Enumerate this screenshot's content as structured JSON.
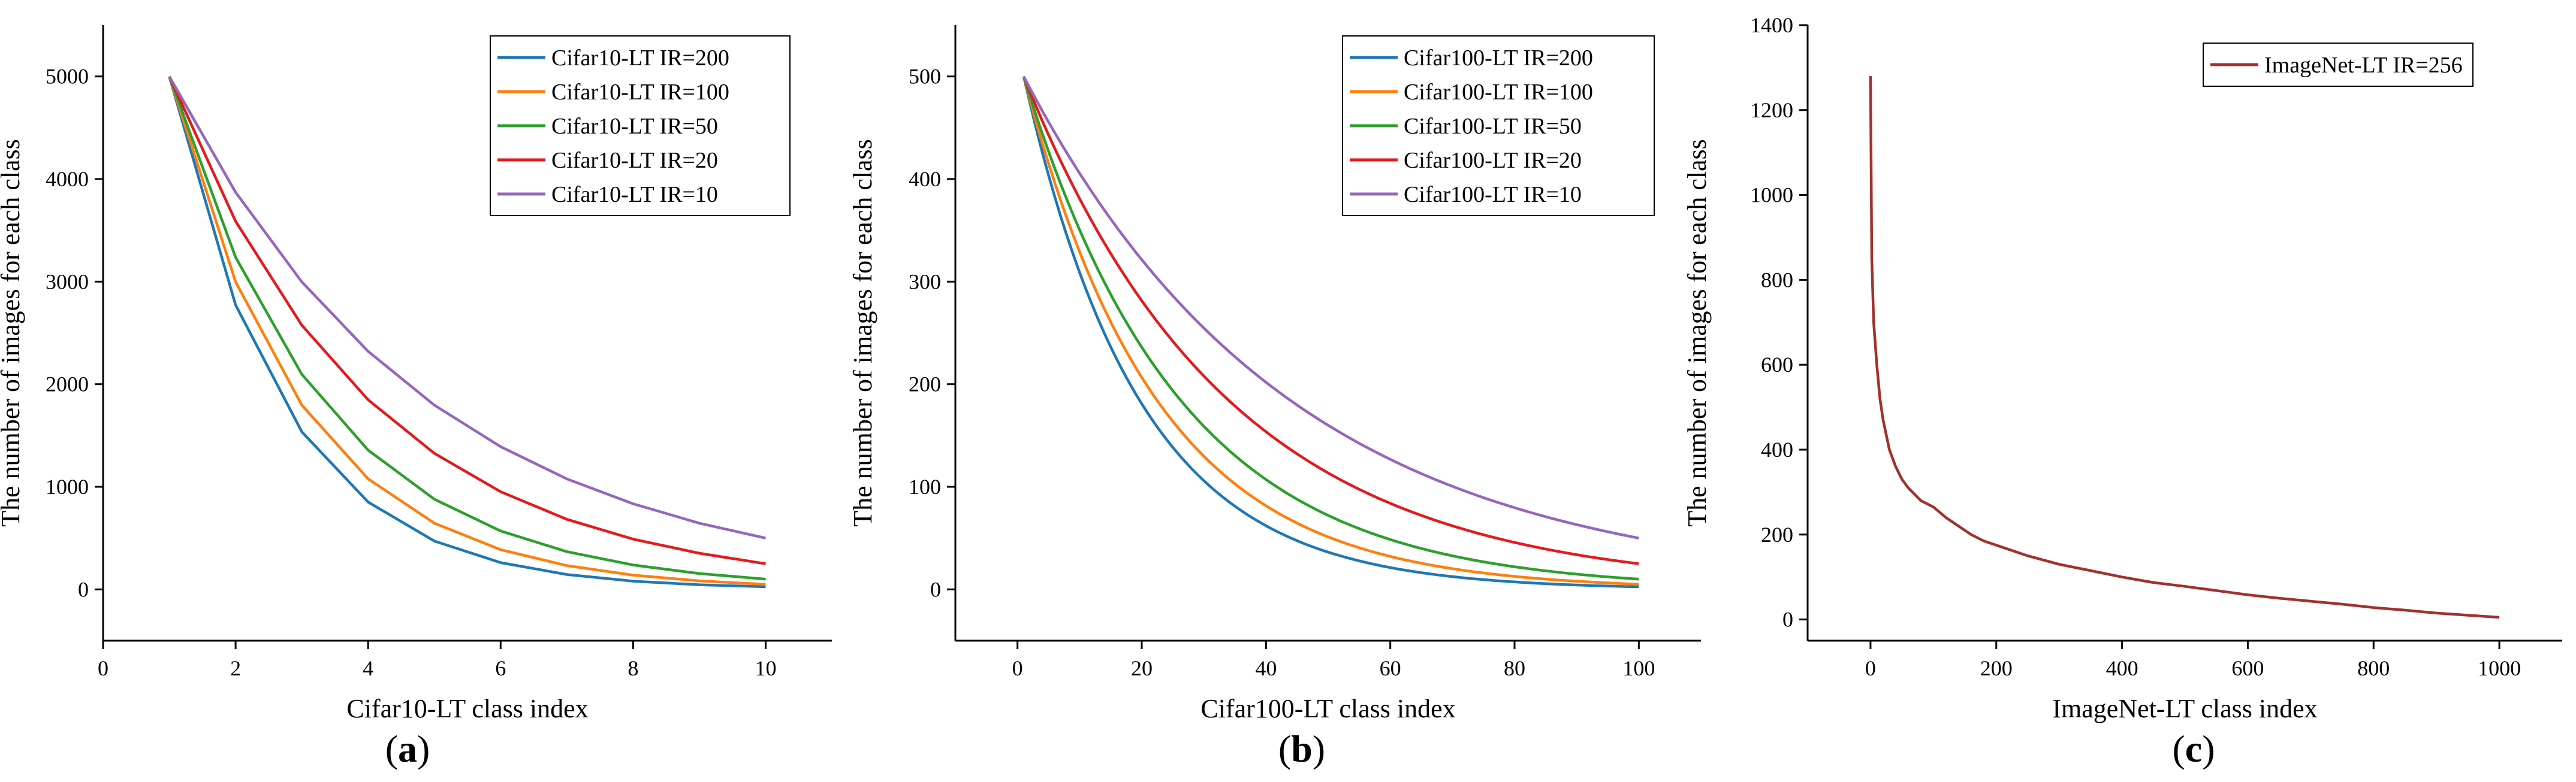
{
  "figure": {
    "panels": [
      {
        "open": "(",
        "letter": "a",
        "close": ")"
      },
      {
        "open": "(",
        "letter": "b",
        "close": ")"
      },
      {
        "open": "(",
        "letter": "c",
        "close": ")"
      }
    ]
  },
  "chart_data": [
    {
      "type": "line",
      "xlabel": "Cifar10-LT class index",
      "ylabel": "The number of images for each class",
      "xlim": [
        0,
        11
      ],
      "ylim": [
        -500,
        5500
      ],
      "xticks": [
        0,
        2,
        4,
        6,
        8,
        10
      ],
      "yticks": [
        0,
        1000,
        2000,
        3000,
        4000,
        5000
      ],
      "grid": false,
      "legend": "top-right",
      "x": [
        1,
        2,
        3,
        4,
        5,
        6,
        7,
        8,
        9,
        10
      ],
      "series": [
        {
          "name": "Cifar10-LT IR=200",
          "color": "#1f77b4",
          "values": [
            5000,
            2772,
            1536,
            851,
            471,
            261,
            145,
            80,
            45,
            25
          ]
        },
        {
          "name": "Cifar10-LT IR=100",
          "color": "#ff7f0e",
          "values": [
            5000,
            2997,
            1796,
            1077,
            645,
            387,
            232,
            139,
            83,
            50
          ]
        },
        {
          "name": "Cifar10-LT IR=50",
          "color": "#2ca02c",
          "values": [
            5000,
            3237,
            2096,
            1357,
            879,
            569,
            368,
            238,
            154,
            100
          ]
        },
        {
          "name": "Cifar10-LT IR=20",
          "color": "#e41a1c",
          "values": [
            5000,
            3588,
            2575,
            1848,
            1326,
            952,
            683,
            490,
            352,
            250
          ]
        },
        {
          "name": "Cifar10-LT IR=10",
          "color": "#9467bd",
          "values": [
            5000,
            3871,
            2997,
            2320,
            1796,
            1391,
            1077,
            834,
            645,
            500
          ]
        }
      ]
    },
    {
      "type": "line",
      "xlabel": "Cifar100-LT class index",
      "ylabel": "The number of images for each class",
      "xlim": [
        -10,
        110
      ],
      "ylim": [
        -50,
        550
      ],
      "xticks": [
        0,
        20,
        40,
        60,
        80,
        100
      ],
      "yticks": [
        0,
        100,
        200,
        300,
        400,
        500
      ],
      "grid": false,
      "legend": "top-right",
      "x_range": [
        1,
        100
      ],
      "series": [
        {
          "name": "Cifar100-LT IR=200",
          "color": "#1f77b4",
          "max": 500,
          "ratio": 200
        },
        {
          "name": "Cifar100-LT IR=100",
          "color": "#ff7f0e",
          "max": 500,
          "ratio": 100
        },
        {
          "name": "Cifar100-LT IR=50",
          "color": "#2ca02c",
          "max": 500,
          "ratio": 50
        },
        {
          "name": "Cifar100-LT IR=20",
          "color": "#e41a1c",
          "max": 500,
          "ratio": 20
        },
        {
          "name": "Cifar100-LT IR=10",
          "color": "#9467bd",
          "max": 500,
          "ratio": 10
        }
      ]
    },
    {
      "type": "line",
      "xlabel": "ImageNet-LT class index",
      "ylabel": "The number of images for each class",
      "xlim": [
        -100,
        1100
      ],
      "ylim": [
        -50,
        1400
      ],
      "xticks": [
        0,
        200,
        400,
        600,
        800,
        1000
      ],
      "yticks": [
        0,
        200,
        400,
        600,
        800,
        1000,
        1200,
        1400
      ],
      "grid": false,
      "legend": "top-right",
      "series": [
        {
          "name": "ImageNet-LT IR=256",
          "color": "#a0322d",
          "x": [
            0,
            2,
            5,
            10,
            15,
            20,
            30,
            40,
            50,
            60,
            70,
            80,
            100,
            120,
            140,
            160,
            180,
            200,
            250,
            300,
            350,
            400,
            450,
            500,
            550,
            600,
            650,
            700,
            750,
            800,
            850,
            900,
            950,
            1000
          ],
          "values": [
            1280,
            850,
            700,
            600,
            520,
            470,
            400,
            360,
            330,
            310,
            295,
            280,
            265,
            240,
            220,
            200,
            185,
            175,
            150,
            130,
            115,
            100,
            87,
            78,
            68,
            58,
            50,
            43,
            36,
            28,
            22,
            15,
            10,
            5
          ]
        }
      ]
    }
  ]
}
